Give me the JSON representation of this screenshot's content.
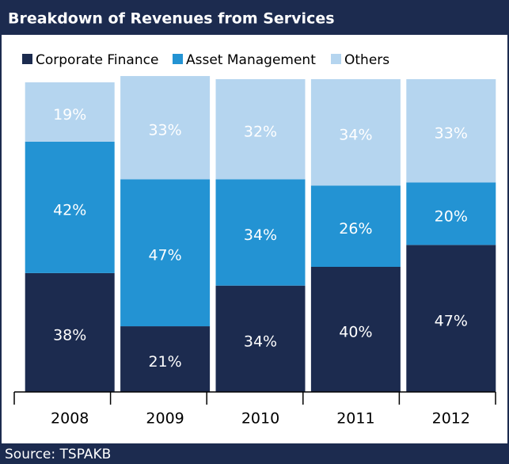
{
  "chart_data": {
    "type": "stacked_bar",
    "title": "Breakdown of Revenues from Services",
    "categories": [
      "2008",
      "2009",
      "2010",
      "2011",
      "2012"
    ],
    "series": [
      {
        "name": "Corporate Finance",
        "color": "#1c2b4f",
        "values": [
          38,
          21,
          34,
          40,
          47
        ],
        "value_labels": [
          "38%",
          "21%",
          "34%",
          "40%",
          "47%"
        ]
      },
      {
        "name": "Asset Management",
        "color": "#2393d3",
        "values": [
          42,
          47,
          34,
          26,
          20
        ],
        "value_labels": [
          "42%",
          "47%",
          "34%",
          "26%",
          "20%"
        ]
      },
      {
        "name": "Others",
        "color": "#b5d5ef",
        "values": [
          19,
          33,
          32,
          34,
          33
        ],
        "value_labels": [
          "19%",
          "33%",
          "32%",
          "34%",
          "33%"
        ]
      }
    ],
    "ylim": [
      0,
      100
    ],
    "source": "Source: TSPAKB"
  }
}
